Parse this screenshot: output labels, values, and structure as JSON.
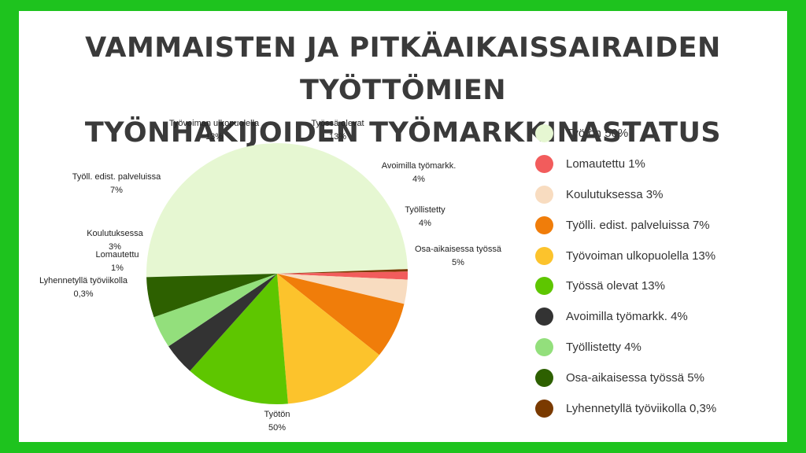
{
  "title": {
    "line1": "Vammaisten ja pitkäaikaissairaiden työttömien",
    "line2": "työnhakijoiden työmarkkinastatus"
  },
  "chart_data": {
    "type": "pie",
    "title": "Vammaisten ja pitkäaikaissairaiden työttömien työnhakijoiden työmarkkinastatus",
    "legend_position": "right",
    "slices": [
      {
        "label": "Työtön",
        "value": 50,
        "value_label": "50%",
        "legend": "Työtön 50%",
        "color": "#e6f7d2"
      },
      {
        "label": "Lyhennetyllä työviikolla",
        "value": 0.3,
        "value_label": "0,3%",
        "legend": "Lyhennetyllä työviikolla 0,3%",
        "color": "#7a3a00"
      },
      {
        "label": "Lomautettu",
        "value": 1,
        "value_label": "1%",
        "legend": "Lomautettu 1%",
        "color": "#f25c5c"
      },
      {
        "label": "Koulutuksessa",
        "value": 3,
        "value_label": "3%",
        "legend": "Koulutuksessa 3%",
        "color": "#f8dcc0"
      },
      {
        "label": "Työll. edist. palveluissa",
        "value": 7,
        "value_label": "7%",
        "legend": "Työlli. edist. palveluissa 7%",
        "color": "#f07d0a"
      },
      {
        "label": "Työvoiman ulkopuolella",
        "value": 13,
        "value_label": "13%",
        "legend": "Työvoiman ulkopuolella 13%",
        "color": "#fcc32c"
      },
      {
        "label": "Työssä olevat",
        "value": 13,
        "value_label": "13%",
        "legend": "Työssä olevat 13%",
        "color": "#5ec600"
      },
      {
        "label": "Avoimilla työmarkk.",
        "value": 4,
        "value_label": "4%",
        "legend": "Avoimilla työmarkk. 4%",
        "color": "#333333"
      },
      {
        "label": "Työllistetty",
        "value": 4,
        "value_label": "4%",
        "legend": "Työllistetty 4%",
        "color": "#93df7c"
      },
      {
        "label": "Osa-aikaisessa työssä",
        "value": 5,
        "value_label": "5%",
        "legend": "Osa-aikaisessa työssä 5%",
        "color": "#2d6000"
      }
    ],
    "legend_order": [
      0,
      2,
      3,
      4,
      5,
      6,
      7,
      8,
      9,
      1
    ]
  }
}
